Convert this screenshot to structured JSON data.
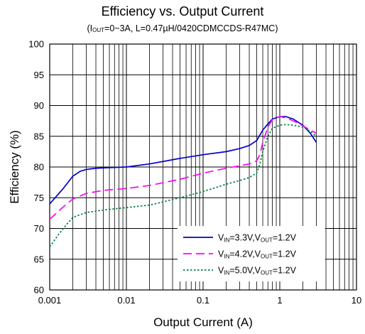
{
  "chart_data": {
    "type": "line",
    "title": "Efficiency vs. Output Current",
    "subtitle": {
      "prefix": "(I",
      "sub": "OUT",
      "suffix": "=0~3A, L=0.47µH/0420CDMCCDS-R47MC)"
    },
    "xlabel": "Output Current (A)",
    "ylabel": "Efficiency (%)",
    "x_scale": "log",
    "xlim": [
      0.001,
      10
    ],
    "ylim": [
      60,
      100
    ],
    "x_ticks": [
      "0.001",
      "0.01",
      "0.1",
      "1",
      "10"
    ],
    "y_ticks": [
      "60",
      "65",
      "70",
      "75",
      "80",
      "85",
      "90",
      "95",
      "100"
    ],
    "grid": true,
    "legend_position": "bottom-right",
    "series": [
      {
        "name": "VIN=3.3V,VOUT=1.2V",
        "label_parts": [
          [
            "V",
            "IN",
            "=3.3V,V",
            "OUT",
            "=1.2V"
          ]
        ],
        "color": "#0000cc",
        "dash": "solid",
        "x": [
          0.001,
          0.0015,
          0.002,
          0.0025,
          0.003,
          0.004,
          0.006,
          0.01,
          0.02,
          0.05,
          0.1,
          0.2,
          0.3,
          0.4,
          0.5,
          0.6,
          0.7,
          0.8,
          1.0,
          1.2,
          1.5,
          2.0,
          2.5,
          3.0
        ],
        "y": [
          74.0,
          76.5,
          78.5,
          79.3,
          79.6,
          79.8,
          79.9,
          80.0,
          80.5,
          81.4,
          82.0,
          82.5,
          83.0,
          83.5,
          84.3,
          86.0,
          87.0,
          87.8,
          88.2,
          88.2,
          87.8,
          86.8,
          85.5,
          84.0
        ]
      },
      {
        "name": "VIN=4.2V,VOUT=1.2V",
        "label_parts": [
          [
            "V",
            "IN",
            "=4.2V,V",
            "OUT",
            "=1.2V"
          ]
        ],
        "color": "#ff00ff",
        "dash": "long-dash",
        "x": [
          0.001,
          0.0015,
          0.002,
          0.003,
          0.005,
          0.01,
          0.02,
          0.05,
          0.1,
          0.2,
          0.3,
          0.4,
          0.5,
          0.55,
          0.6,
          0.7,
          0.8,
          1.0,
          1.2,
          1.5,
          2.0,
          2.5,
          3.0
        ],
        "y": [
          71.5,
          73.5,
          74.8,
          75.7,
          76.2,
          76.5,
          77.0,
          78.0,
          79.0,
          79.8,
          80.2,
          80.5,
          81.0,
          82.0,
          84.0,
          86.5,
          87.7,
          88.2,
          88.0,
          87.5,
          86.7,
          86.0,
          85.5
        ]
      },
      {
        "name": "VIN=5.0V,VOUT=1.2V",
        "label_parts": [
          [
            "V",
            "IN",
            "=5.0V,V",
            "OUT",
            "=1.2V"
          ]
        ],
        "color": "#008040",
        "dash": "dotted",
        "x": [
          0.001,
          0.0013,
          0.0017,
          0.002,
          0.003,
          0.005,
          0.01,
          0.02,
          0.05,
          0.1,
          0.2,
          0.3,
          0.4,
          0.5,
          0.55,
          0.6,
          0.7,
          0.8,
          1.0,
          1.2,
          1.5,
          2.0,
          2.5,
          3.0
        ],
        "y": [
          67.0,
          69.0,
          70.8,
          71.8,
          72.6,
          73.0,
          73.4,
          73.8,
          75.0,
          76.0,
          77.2,
          77.8,
          78.3,
          79.0,
          80.5,
          82.5,
          85.0,
          86.3,
          86.8,
          86.9,
          86.8,
          86.5,
          85.8,
          85.0
        ]
      }
    ]
  }
}
